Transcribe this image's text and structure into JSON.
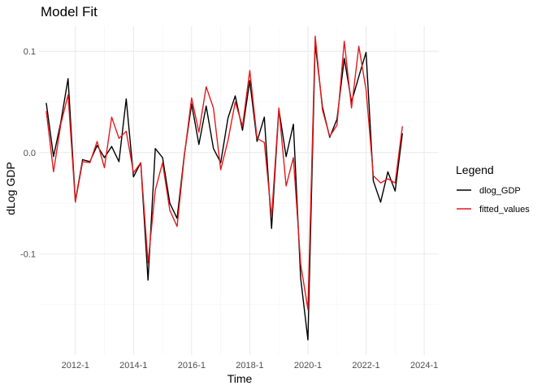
{
  "chart_data": {
    "type": "line",
    "title": "Model Fit",
    "xlabel": "Time",
    "ylabel": "dLog GDP",
    "x_ticks": [
      {
        "label": "2012-1",
        "value": 2012.0
      },
      {
        "label": "2014-1",
        "value": 2014.0
      },
      {
        "label": "2016-1",
        "value": 2016.0
      },
      {
        "label": "2018-1",
        "value": 2018.0
      },
      {
        "label": "2020-1",
        "value": 2020.0
      },
      {
        "label": "2022-1",
        "value": 2022.0
      },
      {
        "label": "2024-1",
        "value": 2024.0
      }
    ],
    "y_ticks": [
      {
        "label": "-0.1",
        "value": -0.1
      },
      {
        "label": "0.0",
        "value": 0.0
      },
      {
        "label": "0.1",
        "value": 0.1
      }
    ],
    "xlim": [
      2010.75,
      2024.5
    ],
    "ylim": [
      -0.2,
      0.125
    ],
    "grid": true,
    "legend": {
      "title": "Legend",
      "position": "right"
    },
    "x": [
      2011.0,
      2011.25,
      2011.5,
      2011.75,
      2012.0,
      2012.25,
      2012.5,
      2012.75,
      2013.0,
      2013.25,
      2013.5,
      2013.75,
      2014.0,
      2014.25,
      2014.5,
      2014.75,
      2015.0,
      2015.25,
      2015.5,
      2015.75,
      2016.0,
      2016.25,
      2016.5,
      2016.75,
      2017.0,
      2017.25,
      2017.5,
      2017.75,
      2018.0,
      2018.25,
      2018.5,
      2018.75,
      2019.0,
      2019.25,
      2019.5,
      2019.75,
      2020.0,
      2020.25,
      2020.5,
      2020.75,
      2021.0,
      2021.25,
      2021.5,
      2021.75,
      2022.0,
      2022.25,
      2022.5,
      2022.75,
      2023.0,
      2023.25,
      2023.5
    ],
    "series": [
      {
        "name": "dlog_GDP",
        "color": "#000000",
        "values": [
          0.049,
          -0.004,
          0.03,
          0.073,
          -0.048,
          -0.007,
          -0.009,
          0.007,
          -0.005,
          0.006,
          -0.009,
          0.053,
          -0.024,
          -0.01,
          -0.126,
          0.004,
          -0.005,
          -0.05,
          -0.065,
          -0.002,
          0.048,
          0.008,
          0.046,
          0.004,
          -0.01,
          0.034,
          0.056,
          0.022,
          0.071,
          0.011,
          0.035,
          -0.075,
          0.043,
          -0.004,
          0.028,
          -0.124,
          -0.185,
          0.108,
          0.045,
          0.015,
          0.033,
          0.093,
          0.05,
          0.075,
          0.099,
          -0.028,
          -0.049,
          -0.019,
          -0.038,
          0.019,
          null
        ]
      },
      {
        "name": "fitted_values",
        "color": "#e41a1c",
        "values": [
          0.041,
          -0.019,
          0.028,
          0.057,
          -0.049,
          -0.009,
          -0.01,
          0.011,
          -0.015,
          0.035,
          0.014,
          0.021,
          -0.02,
          -0.01,
          -0.109,
          -0.037,
          -0.01,
          -0.057,
          -0.073,
          -0.003,
          0.054,
          0.02,
          0.065,
          0.044,
          -0.017,
          0.012,
          0.05,
          0.026,
          0.081,
          0.014,
          0.01,
          -0.064,
          0.044,
          -0.033,
          -0.005,
          -0.11,
          -0.155,
          0.115,
          0.042,
          0.016,
          0.027,
          0.11,
          0.044,
          0.105,
          0.062,
          -0.023,
          -0.03,
          -0.026,
          -0.03,
          0.026,
          null
        ]
      }
    ]
  }
}
